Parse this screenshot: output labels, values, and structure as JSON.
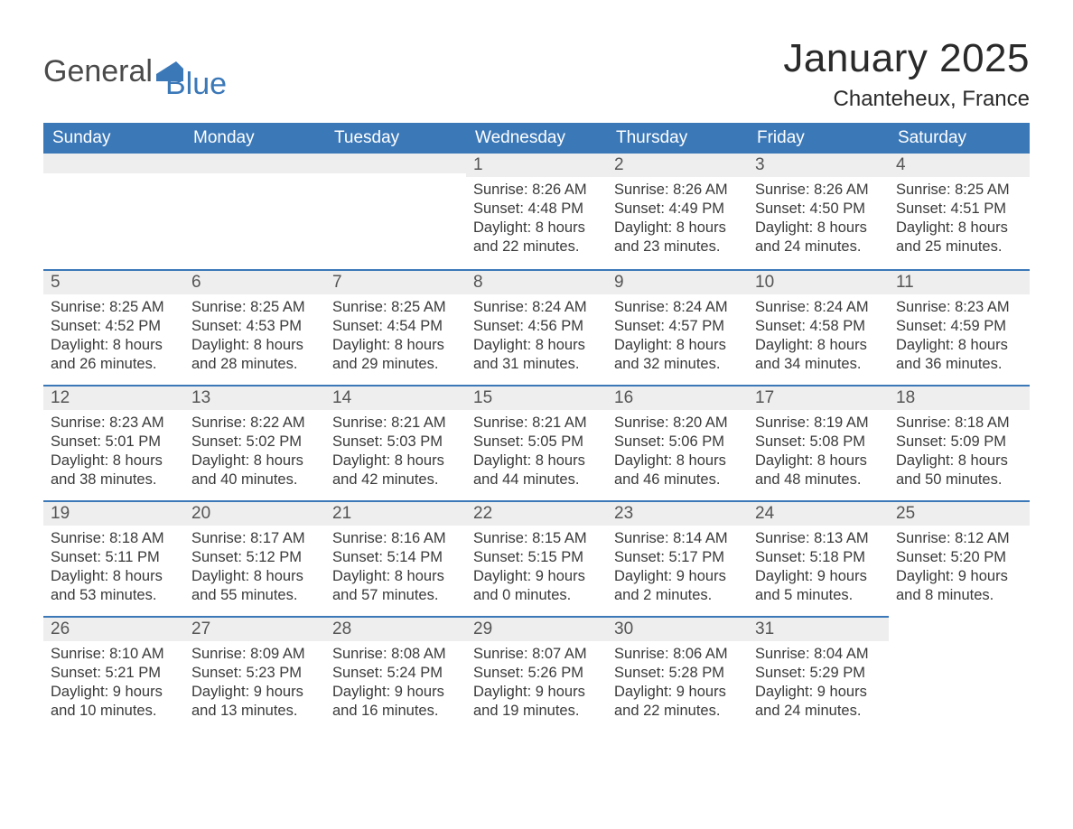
{
  "logo": {
    "text1": "General",
    "text2": "Blue",
    "icon_color": "#3b78b8"
  },
  "title": "January 2025",
  "location": "Chanteheux, France",
  "colors": {
    "header_bg": "#3b78b8",
    "header_text": "#ffffff",
    "daynum_bg": "#eeeeee",
    "cell_border": "#3b78b8",
    "body_text": "#3a3a3a",
    "page_bg": "#ffffff"
  },
  "typography": {
    "title_fontsize": 44,
    "location_fontsize": 24,
    "dayheader_fontsize": 19,
    "daynum_fontsize": 19,
    "entry_fontsize": 16.5,
    "font_family": "Arial"
  },
  "day_headers": [
    "Sunday",
    "Monday",
    "Tuesday",
    "Wednesday",
    "Thursday",
    "Friday",
    "Saturday"
  ],
  "weeks": [
    [
      null,
      null,
      null,
      {
        "n": 1,
        "sunrise": "8:26 AM",
        "sunset": "4:48 PM",
        "dl_h": 8,
        "dl_m": 22
      },
      {
        "n": 2,
        "sunrise": "8:26 AM",
        "sunset": "4:49 PM",
        "dl_h": 8,
        "dl_m": 23
      },
      {
        "n": 3,
        "sunrise": "8:26 AM",
        "sunset": "4:50 PM",
        "dl_h": 8,
        "dl_m": 24
      },
      {
        "n": 4,
        "sunrise": "8:25 AM",
        "sunset": "4:51 PM",
        "dl_h": 8,
        "dl_m": 25
      }
    ],
    [
      {
        "n": 5,
        "sunrise": "8:25 AM",
        "sunset": "4:52 PM",
        "dl_h": 8,
        "dl_m": 26
      },
      {
        "n": 6,
        "sunrise": "8:25 AM",
        "sunset": "4:53 PM",
        "dl_h": 8,
        "dl_m": 28
      },
      {
        "n": 7,
        "sunrise": "8:25 AM",
        "sunset": "4:54 PM",
        "dl_h": 8,
        "dl_m": 29
      },
      {
        "n": 8,
        "sunrise": "8:24 AM",
        "sunset": "4:56 PM",
        "dl_h": 8,
        "dl_m": 31
      },
      {
        "n": 9,
        "sunrise": "8:24 AM",
        "sunset": "4:57 PM",
        "dl_h": 8,
        "dl_m": 32
      },
      {
        "n": 10,
        "sunrise": "8:24 AM",
        "sunset": "4:58 PM",
        "dl_h": 8,
        "dl_m": 34
      },
      {
        "n": 11,
        "sunrise": "8:23 AM",
        "sunset": "4:59 PM",
        "dl_h": 8,
        "dl_m": 36
      }
    ],
    [
      {
        "n": 12,
        "sunrise": "8:23 AM",
        "sunset": "5:01 PM",
        "dl_h": 8,
        "dl_m": 38
      },
      {
        "n": 13,
        "sunrise": "8:22 AM",
        "sunset": "5:02 PM",
        "dl_h": 8,
        "dl_m": 40
      },
      {
        "n": 14,
        "sunrise": "8:21 AM",
        "sunset": "5:03 PM",
        "dl_h": 8,
        "dl_m": 42
      },
      {
        "n": 15,
        "sunrise": "8:21 AM",
        "sunset": "5:05 PM",
        "dl_h": 8,
        "dl_m": 44
      },
      {
        "n": 16,
        "sunrise": "8:20 AM",
        "sunset": "5:06 PM",
        "dl_h": 8,
        "dl_m": 46
      },
      {
        "n": 17,
        "sunrise": "8:19 AM",
        "sunset": "5:08 PM",
        "dl_h": 8,
        "dl_m": 48
      },
      {
        "n": 18,
        "sunrise": "8:18 AM",
        "sunset": "5:09 PM",
        "dl_h": 8,
        "dl_m": 50
      }
    ],
    [
      {
        "n": 19,
        "sunrise": "8:18 AM",
        "sunset": "5:11 PM",
        "dl_h": 8,
        "dl_m": 53
      },
      {
        "n": 20,
        "sunrise": "8:17 AM",
        "sunset": "5:12 PM",
        "dl_h": 8,
        "dl_m": 55
      },
      {
        "n": 21,
        "sunrise": "8:16 AM",
        "sunset": "5:14 PM",
        "dl_h": 8,
        "dl_m": 57
      },
      {
        "n": 22,
        "sunrise": "8:15 AM",
        "sunset": "5:15 PM",
        "dl_h": 9,
        "dl_m": 0
      },
      {
        "n": 23,
        "sunrise": "8:14 AM",
        "sunset": "5:17 PM",
        "dl_h": 9,
        "dl_m": 2
      },
      {
        "n": 24,
        "sunrise": "8:13 AM",
        "sunset": "5:18 PM",
        "dl_h": 9,
        "dl_m": 5
      },
      {
        "n": 25,
        "sunrise": "8:12 AM",
        "sunset": "5:20 PM",
        "dl_h": 9,
        "dl_m": 8
      }
    ],
    [
      {
        "n": 26,
        "sunrise": "8:10 AM",
        "sunset": "5:21 PM",
        "dl_h": 9,
        "dl_m": 10
      },
      {
        "n": 27,
        "sunrise": "8:09 AM",
        "sunset": "5:23 PM",
        "dl_h": 9,
        "dl_m": 13
      },
      {
        "n": 28,
        "sunrise": "8:08 AM",
        "sunset": "5:24 PM",
        "dl_h": 9,
        "dl_m": 16
      },
      {
        "n": 29,
        "sunrise": "8:07 AM",
        "sunset": "5:26 PM",
        "dl_h": 9,
        "dl_m": 19
      },
      {
        "n": 30,
        "sunrise": "8:06 AM",
        "sunset": "5:28 PM",
        "dl_h": 9,
        "dl_m": 22
      },
      {
        "n": 31,
        "sunrise": "8:04 AM",
        "sunset": "5:29 PM",
        "dl_h": 9,
        "dl_m": 24
      },
      null
    ]
  ],
  "labels": {
    "sunrise": "Sunrise: ",
    "sunset": "Sunset: ",
    "daylight1": "Daylight: ",
    "daylight2": " hours",
    "daylight3": "and ",
    "daylight4": " minutes."
  }
}
